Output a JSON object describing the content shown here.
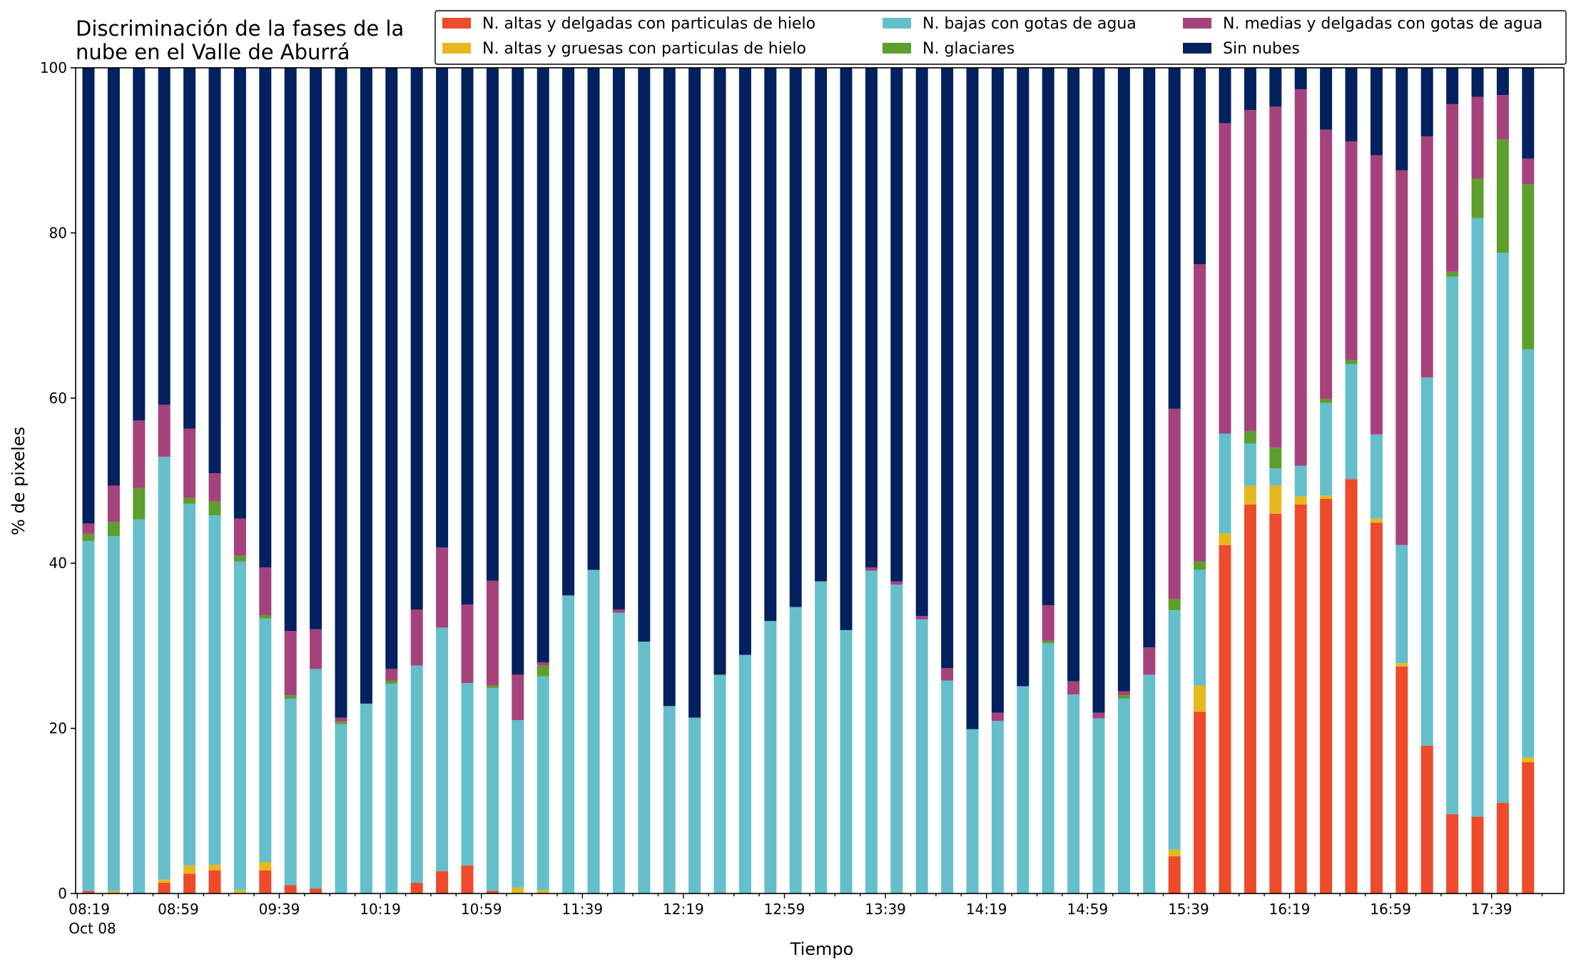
{
  "chart_data": {
    "type": "bar",
    "stacked": true,
    "title_lines": [
      "Discriminación de la fases de la",
      "nube en el Valle de Aburrá"
    ],
    "xlabel": "Tiempo",
    "ylabel": "% de pixeles",
    "ylim": [
      0,
      100
    ],
    "yticks": [
      "0",
      "20",
      "40",
      "60",
      "80",
      "100"
    ],
    "xtick_labels": [
      "08:19",
      "08:59",
      "09:39",
      "10:19",
      "10:59",
      "11:39",
      "12:19",
      "12:59",
      "13:39",
      "14:19",
      "14:59",
      "15:39",
      "16:19",
      "16:59",
      "17:39"
    ],
    "xtick_sublabel": "Oct 08",
    "legend_position": "top-right",
    "categories": [
      "08:19",
      "08:29",
      "08:39",
      "08:49",
      "08:59",
      "09:09",
      "09:19",
      "09:29",
      "09:39",
      "09:49",
      "09:59",
      "10:09",
      "10:19",
      "10:29",
      "10:39",
      "10:49",
      "10:59",
      "11:09",
      "11:19",
      "11:29",
      "11:39",
      "11:49",
      "11:59",
      "12:09",
      "12:19",
      "12:29",
      "12:39",
      "12:49",
      "12:59",
      "13:09",
      "13:19",
      "13:29",
      "13:39",
      "13:49",
      "13:59",
      "14:09",
      "14:19",
      "14:29",
      "14:39",
      "14:49",
      "14:59",
      "15:09",
      "15:19",
      "15:29",
      "15:39",
      "15:49",
      "15:59",
      "16:09",
      "16:19",
      "16:29",
      "16:39",
      "16:49",
      "16:59",
      "17:09",
      "17:19",
      "17:29",
      "17:39",
      "17:49"
    ],
    "series": [
      {
        "name": "N. altas y delgadas con particulas de hielo",
        "color": "#ee4a2c",
        "values": [
          0.3,
          0,
          0,
          1.3,
          2.4,
          2.8,
          0,
          2.8,
          1.0,
          0.6,
          0,
          0,
          0,
          1.3,
          2.7,
          3.4,
          0.3,
          0,
          0,
          0,
          0,
          0,
          0,
          0,
          0,
          0,
          0,
          0,
          0,
          0,
          0,
          0,
          0,
          0,
          0,
          0,
          0,
          0,
          0,
          0,
          0,
          0,
          0,
          4.5,
          22.0,
          42.2,
          47.1,
          46.0,
          47.1,
          47.8,
          50.2,
          44.9,
          27.5,
          17.9,
          9.6,
          9.3,
          11.0,
          15.9
        ]
      },
      {
        "name": "N. altas y gruesas con particulas de hielo",
        "color": "#e6b81e",
        "values": [
          0,
          0.3,
          0,
          0.4,
          1.0,
          0.7,
          0.4,
          1.0,
          0,
          0,
          0,
          0,
          0,
          0,
          0,
          0,
          0,
          0.7,
          0.4,
          0,
          0,
          0,
          0,
          0,
          0,
          0,
          0,
          0,
          0,
          0,
          0,
          0,
          0,
          0,
          0,
          0,
          0,
          0,
          0,
          0,
          0,
          0,
          0,
          0.8,
          3.2,
          1.4,
          2.3,
          3.4,
          1.0,
          0.4,
          0,
          0.5,
          0.4,
          0,
          0,
          0,
          0,
          0.6
        ]
      },
      {
        "name": "N. bajas con gotas de agua",
        "color": "#64bfcb",
        "values": [
          42.4,
          43.0,
          45.3,
          51.2,
          43.8,
          42.3,
          39.8,
          29.5,
          22.6,
          26.6,
          20.5,
          23.0,
          25.4,
          26.3,
          29.5,
          22.1,
          24.6,
          20.3,
          25.9,
          36.1,
          39.2,
          34.0,
          30.5,
          22.7,
          21.3,
          26.5,
          28.9,
          33.0,
          34.7,
          37.8,
          31.9,
          39.1,
          37.4,
          33.2,
          25.8,
          19.9,
          20.9,
          25.1,
          30.3,
          24.1,
          21.2,
          23.6,
          26.5,
          29.0,
          14.0,
          12.1,
          5.1,
          2.1,
          3.7,
          11.2,
          13.9,
          10.2,
          14.3,
          44.6,
          65.1,
          72.5,
          66.6,
          49.4
        ]
      },
      {
        "name": "N. glaciares",
        "color": "#5e9e2d",
        "values": [
          0.8,
          1.7,
          3.8,
          0,
          0.7,
          1.7,
          0.7,
          0.4,
          0.4,
          0,
          0.3,
          0,
          0.4,
          0,
          0,
          0,
          0.3,
          0,
          1.3,
          0,
          0,
          0,
          0,
          0,
          0,
          0,
          0,
          0,
          0,
          0,
          0,
          0,
          0,
          0,
          0,
          0,
          0,
          0,
          0.3,
          0,
          0,
          0.4,
          0,
          1.4,
          1.0,
          0,
          1.5,
          2.5,
          0,
          0.5,
          0.5,
          0,
          0,
          0,
          0.6,
          4.8,
          13.7,
          20.0
        ]
      },
      {
        "name": "N. medias y delgadas con gotas de agua",
        "color": "#a5427b",
        "values": [
          1.3,
          4.4,
          8.2,
          6.3,
          8.4,
          3.4,
          4.5,
          5.8,
          7.8,
          4.8,
          0.5,
          0,
          1.4,
          6.8,
          9.7,
          9.5,
          12.7,
          5.5,
          0.4,
          0,
          0,
          0.4,
          0,
          0,
          0,
          0,
          0,
          0,
          0,
          0,
          0,
          0.4,
          0.4,
          0.4,
          1.5,
          0,
          1.0,
          0,
          4.3,
          1.6,
          0.7,
          0.5,
          3.3,
          23.0,
          36.0,
          37.6,
          38.9,
          41.3,
          45.6,
          32.6,
          26.5,
          33.8,
          45.4,
          29.2,
          20.3,
          9.9,
          5.4,
          3.1
        ]
      },
      {
        "name": "Sin nubes",
        "color": "#03205f",
        "values": [
          55.2,
          50.6,
          42.7,
          40.8,
          43.7,
          49.1,
          54.6,
          60.5,
          68.2,
          68.0,
          78.7,
          77.0,
          72.8,
          65.6,
          58.1,
          65.0,
          62.1,
          73.5,
          72.0,
          63.9,
          60.8,
          65.6,
          69.5,
          77.3,
          78.7,
          73.5,
          71.1,
          67.0,
          65.3,
          62.2,
          68.1,
          60.5,
          62.2,
          66.4,
          72.7,
          80.1,
          78.1,
          74.9,
          65.1,
          74.3,
          78.1,
          75.5,
          70.2,
          41.3,
          23.8,
          6.7,
          5.1,
          4.7,
          2.6,
          7.5,
          8.9,
          10.6,
          12.4,
          8.3,
          4.4,
          3.5,
          3.3,
          11.0
        ]
      }
    ]
  }
}
